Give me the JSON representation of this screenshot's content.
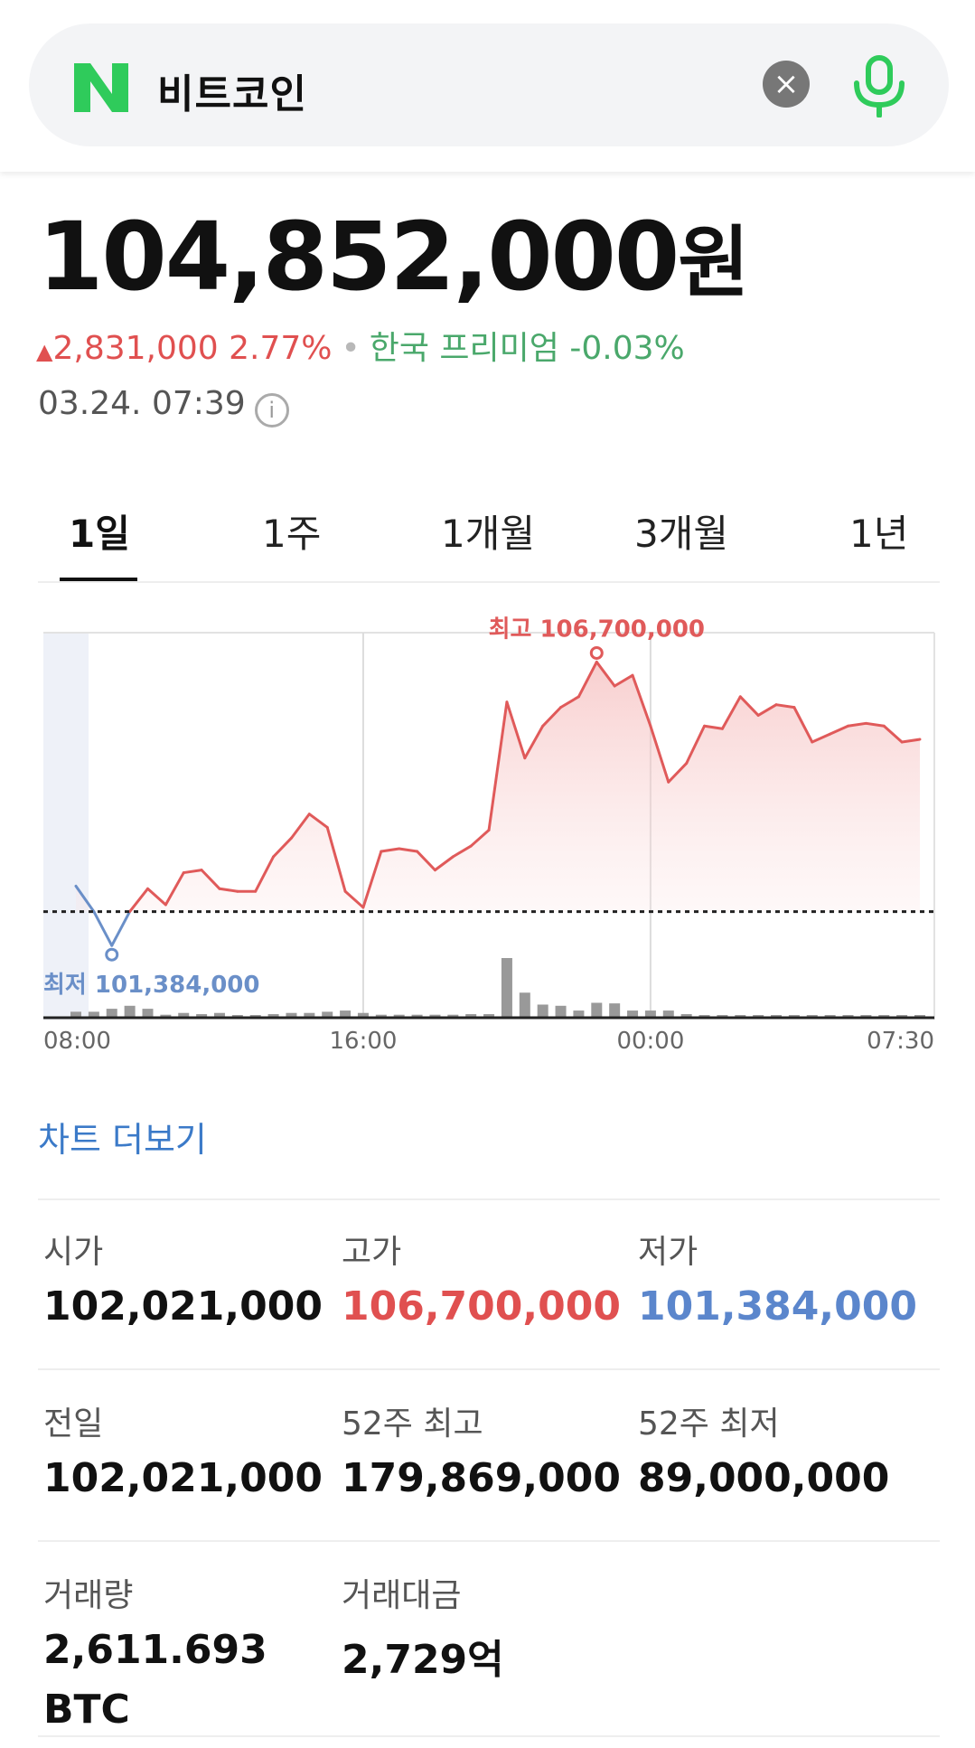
{
  "search": {
    "query": "비트코인"
  },
  "price": {
    "value": "104,852,000",
    "unit": "원",
    "change_amount": "2,831,000",
    "change_pct": "2.77%",
    "premium_label": "한국 프리미엄",
    "premium_value": "-0.03%",
    "timestamp": "03.24. 07:39"
  },
  "tabs": [
    {
      "label": "1일",
      "active": true
    },
    {
      "label": "1주"
    },
    {
      "label": "1개월"
    },
    {
      "label": "3개월"
    },
    {
      "label": "1년"
    }
  ],
  "chart_data": {
    "type": "area",
    "x_tick_labels": [
      "08:00",
      "16:00",
      "00:00",
      "07:30"
    ],
    "high_label": "최고 106,700,000",
    "low_label": "최저 101,384,000",
    "baseline_value": 102021000,
    "ylim": [
      101150000,
      107250000
    ],
    "x_hours_from_8am": [
      0,
      0.5,
      1,
      1.5,
      2.0,
      2.5,
      3,
      3.5,
      4,
      4.5,
      5,
      5.5,
      6,
      6.5,
      7.0,
      7.5,
      8,
      8.5,
      9,
      9.5,
      10,
      10.5,
      11,
      11.5,
      12,
      12.5,
      13,
      13.5,
      14,
      14.5,
      15.0,
      15.5,
      16,
      16.5,
      17,
      17.5,
      18,
      18.5,
      19,
      19.5,
      20,
      20.5,
      21,
      21.5,
      22,
      22.5,
      23,
      23.5
    ],
    "price": [
      102500000,
      102021000,
      101384000,
      102021000,
      102450000,
      102150000,
      102750000,
      102800000,
      102450000,
      102400000,
      102400000,
      103050000,
      103400000,
      103850000,
      103600000,
      102400000,
      102100000,
      103150000,
      103200000,
      103150000,
      102800000,
      103050000,
      103250000,
      103550000,
      105950000,
      104900000,
      105500000,
      105850000,
      106050000,
      106700000,
      106250000,
      106450000,
      105500000,
      104450000,
      104800000,
      105500000,
      105450000,
      106050000,
      105700000,
      105900000,
      105850000,
      105200000,
      105350000,
      105500000,
      105550000,
      105500000,
      105200000,
      105250000
    ],
    "volume": [
      0.1,
      0.1,
      0.15,
      0.2,
      0.15,
      0.05,
      0.08,
      0.06,
      0.08,
      0.04,
      0.03,
      0.06,
      0.08,
      0.08,
      0.1,
      0.12,
      0.08,
      0.05,
      0.05,
      0.05,
      0.05,
      0.05,
      0.06,
      0.06,
      1.0,
      0.42,
      0.22,
      0.2,
      0.12,
      0.25,
      0.24,
      0.12,
      0.12,
      0.12,
      0.06,
      0.03,
      0.04,
      0.03,
      0.03,
      0.03,
      0.02,
      0.02,
      0.02,
      0.02,
      0.02,
      0.02,
      0.02,
      0.02
    ],
    "colors": {
      "up": "#e05a5a",
      "down": "#6a8fc8",
      "volume": "#999999"
    }
  },
  "more_chart_label": "차트 더보기",
  "stats": [
    {
      "label": "시가",
      "value": "102,021,000",
      "kind": "normal"
    },
    {
      "label": "고가",
      "value": "106,700,000",
      "kind": "high"
    },
    {
      "label": "저가",
      "value": "101,384,000",
      "kind": "low"
    },
    {
      "label": "전일",
      "value": "102,021,000",
      "kind": "normal"
    },
    {
      "label": "52주 최고",
      "value": "179,869,000",
      "kind": "normal"
    },
    {
      "label": "52주 최저",
      "value": "89,000,000",
      "kind": "normal"
    },
    {
      "label": "거래량",
      "value": "2,611.693",
      "value2": "BTC",
      "kind": "normal"
    },
    {
      "label": "거래대금",
      "value": "2,729억",
      "kind": "normal"
    }
  ],
  "icons": {
    "logo": "naver-n-logo",
    "clear": "close-icon",
    "mic": "microphone-icon",
    "info": "info-icon",
    "up": "triangle-up-icon"
  }
}
